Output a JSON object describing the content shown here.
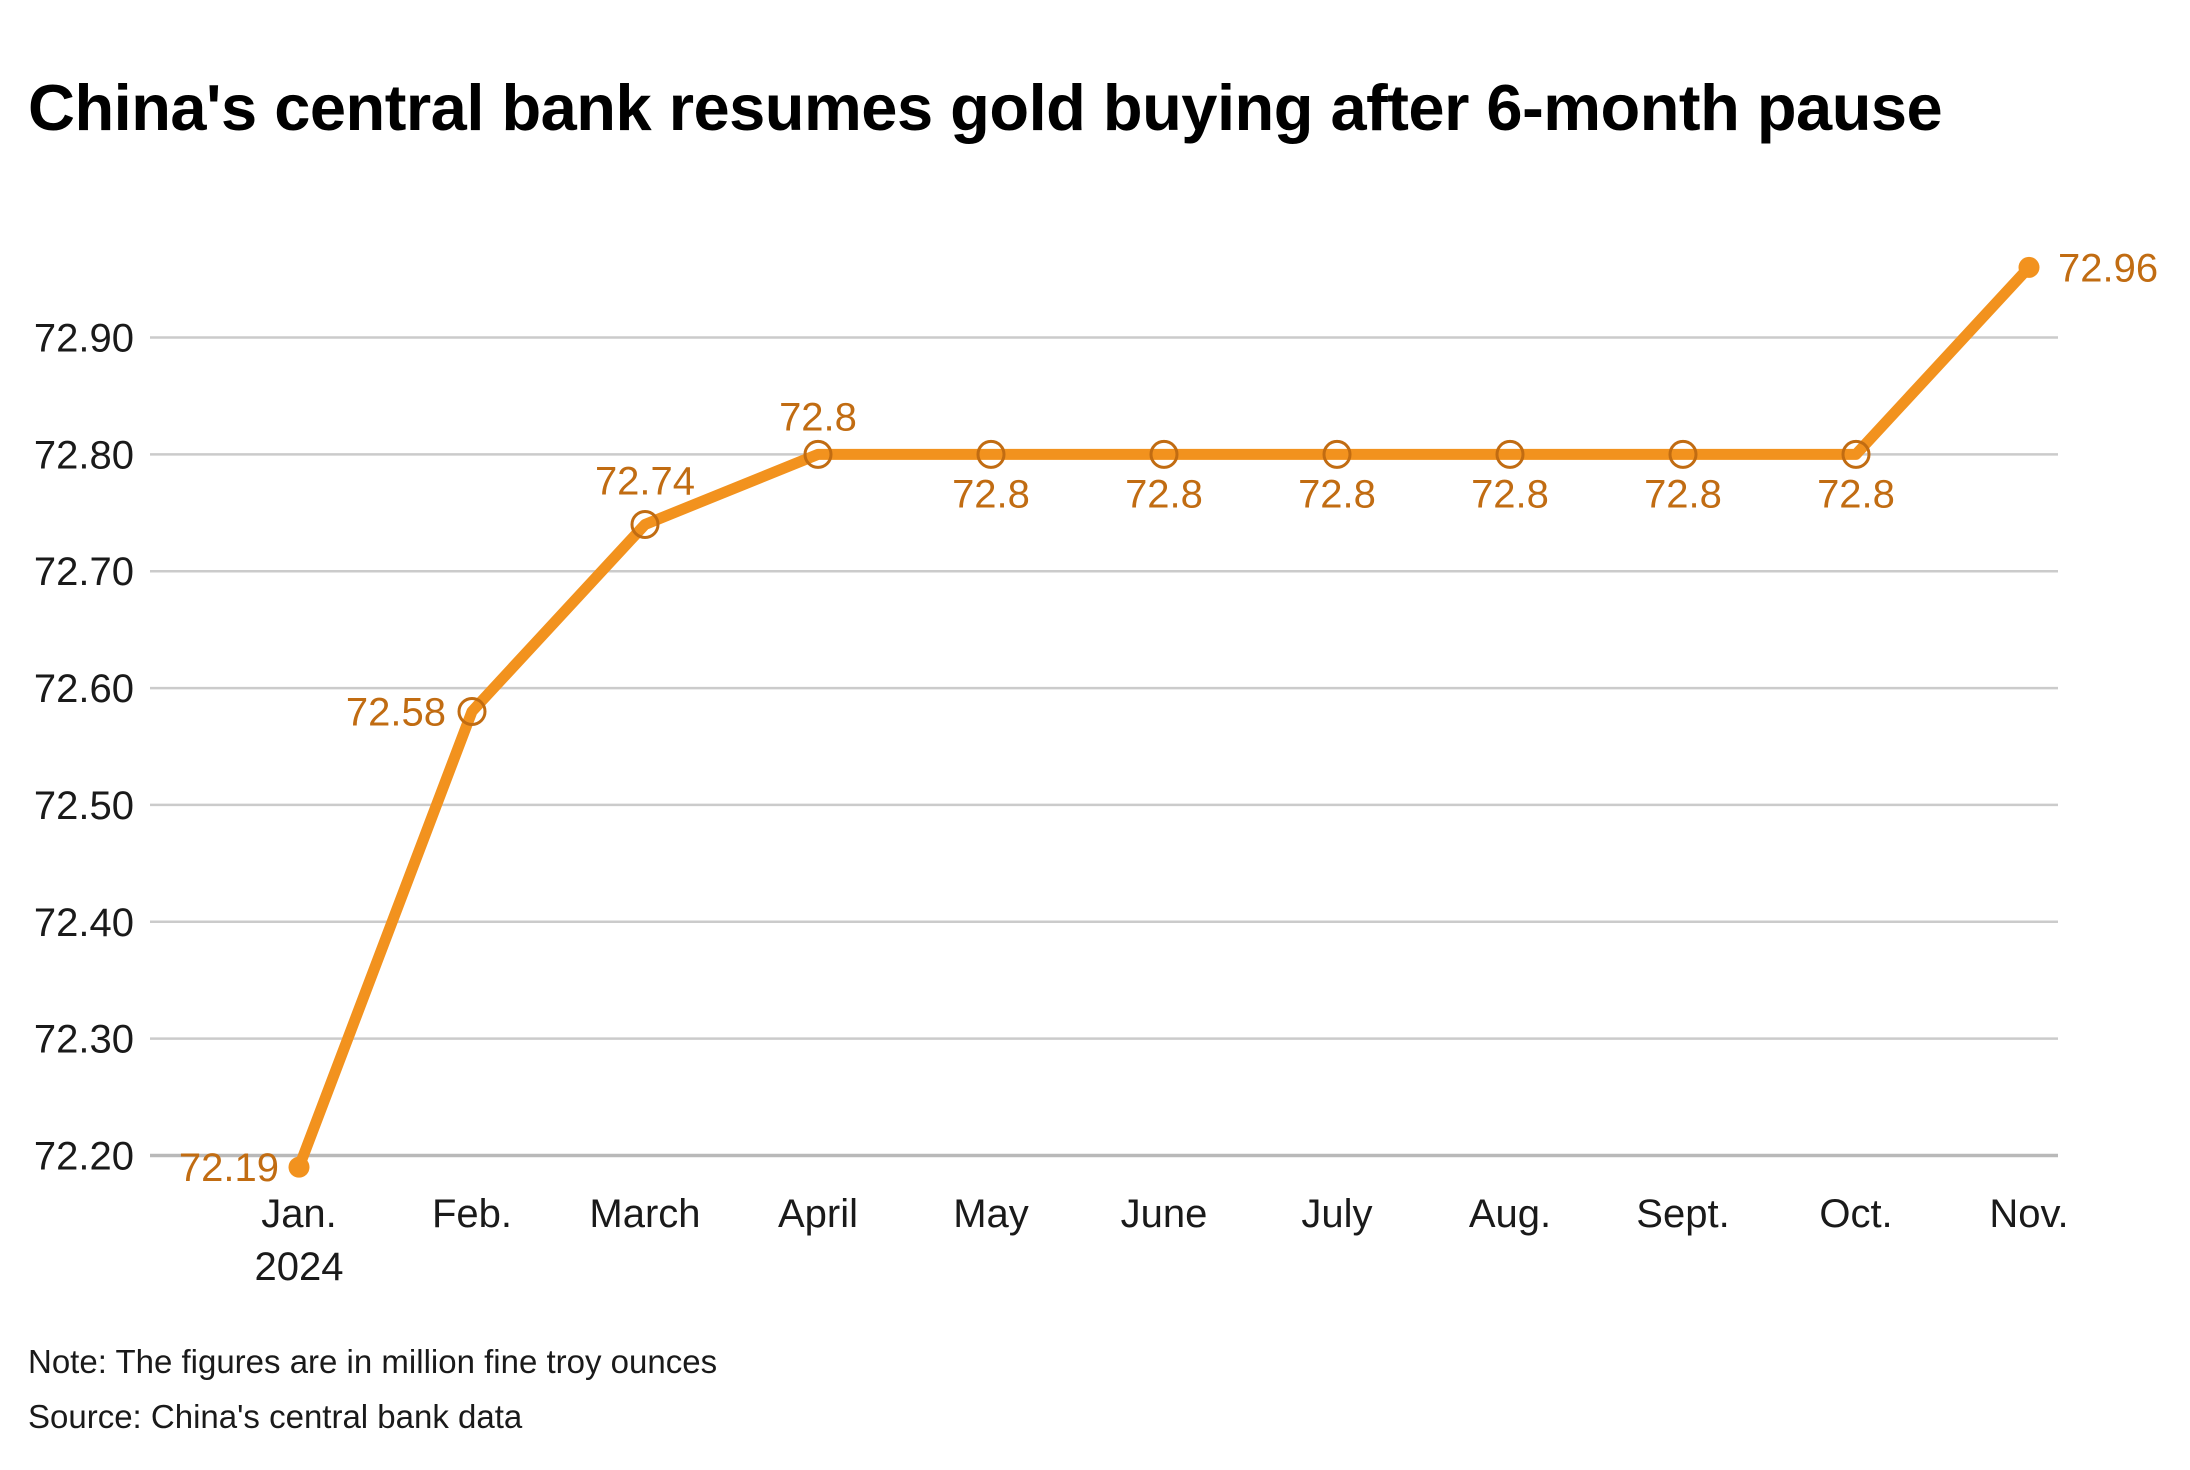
{
  "header": {
    "title": "China's central bank resumes gold buying after 6-month pause"
  },
  "footer": {
    "note": "Note: The figures are in million fine troy ounces",
    "source": "Source: China's central bank data"
  },
  "chart_data": {
    "type": "line",
    "title": "China's central bank resumes gold buying after 6-month pause",
    "xlabel": "",
    "ylabel": "million fine troy ounces",
    "x": [
      "Jan.",
      "Feb.",
      "March",
      "April",
      "May",
      "June",
      "July",
      "Aug.",
      "Sept.",
      "Oct.",
      "Nov."
    ],
    "x_sublabels": {
      "0": "2024"
    },
    "values": [
      72.19,
      72.58,
      72.74,
      72.8,
      72.8,
      72.8,
      72.8,
      72.8,
      72.8,
      72.8,
      72.96
    ],
    "point_labels": [
      "72.19",
      "72.58",
      "72.74",
      "72.8",
      "72.8",
      "72.8",
      "72.8",
      "72.8",
      "72.8",
      "72.8",
      "72.96"
    ],
    "label_positions": [
      "left",
      "left",
      "above",
      "above",
      "below",
      "below",
      "below",
      "below",
      "below",
      "below",
      "right"
    ],
    "marker_styles": [
      "filled",
      "open",
      "open",
      "open",
      "open",
      "open",
      "open",
      "open",
      "open",
      "open",
      "filled"
    ],
    "ylim": [
      72.2,
      72.9
    ],
    "yticks": [
      72.2,
      72.3,
      72.4,
      72.5,
      72.6,
      72.7,
      72.8,
      72.9
    ],
    "ytick_labels": [
      "72.20",
      "72.30",
      "72.40",
      "72.50",
      "72.60",
      "72.70",
      "72.80",
      "72.90"
    ],
    "grid": "horizontal",
    "legend": "none",
    "colors": {
      "line": "#F2921E",
      "end_dot": "#F2921E",
      "marker_stroke": "#C16C12",
      "point_label": "#C16C12",
      "grid": "#cbcbcb",
      "baseline": "#b9b9b9",
      "axis_text": "#1a1a1a",
      "title_text": "#000000",
      "note_text": "#1a1a1a"
    }
  }
}
